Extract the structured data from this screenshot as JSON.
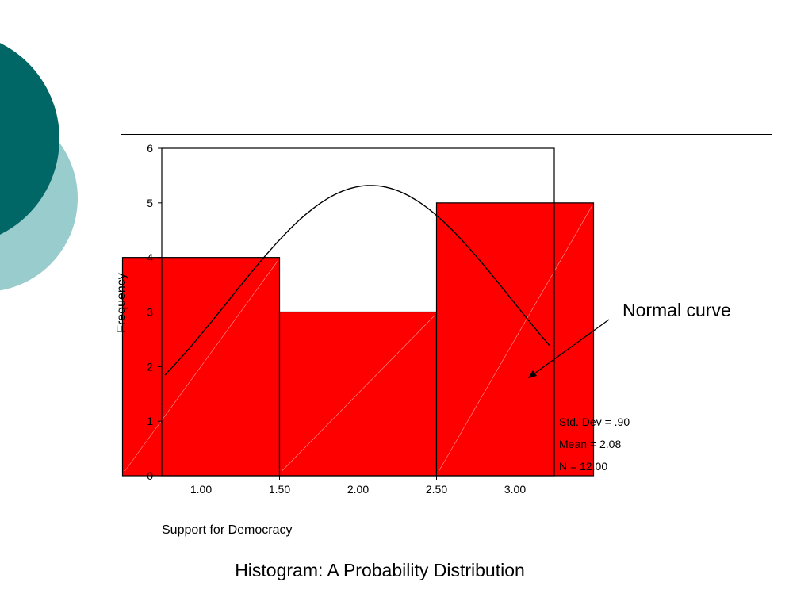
{
  "slide": {
    "caption": "Histogram: A Probability Distribution",
    "annotation": "Normal curve",
    "accent_dark": "#006666",
    "accent_light": "#99cccc"
  },
  "chart_data": {
    "type": "bar",
    "subtype": "histogram",
    "categories": [
      "1.00",
      "2.00",
      "3.00"
    ],
    "values": [
      4,
      3,
      5
    ],
    "bar_color": "#ff0000",
    "xlabel": "Support for Democracy",
    "ylabel": "Frequency",
    "xlim": [
      0.75,
      3.25
    ],
    "ylim": [
      0,
      6
    ],
    "x_ticks": [
      "1.00",
      "1.50",
      "2.00",
      "2.50",
      "3.00"
    ],
    "y_ticks": [
      "0",
      "1",
      "2",
      "3",
      "4",
      "5",
      "6"
    ],
    "normal_curve": {
      "mean": 2.08,
      "std_dev": 0.9,
      "n": 12,
      "bin_width": 1
    },
    "stats": [
      "Std. Dev = .90",
      "Mean = 2.08",
      "N = 12.00"
    ],
    "grid": false,
    "legend": "none"
  }
}
